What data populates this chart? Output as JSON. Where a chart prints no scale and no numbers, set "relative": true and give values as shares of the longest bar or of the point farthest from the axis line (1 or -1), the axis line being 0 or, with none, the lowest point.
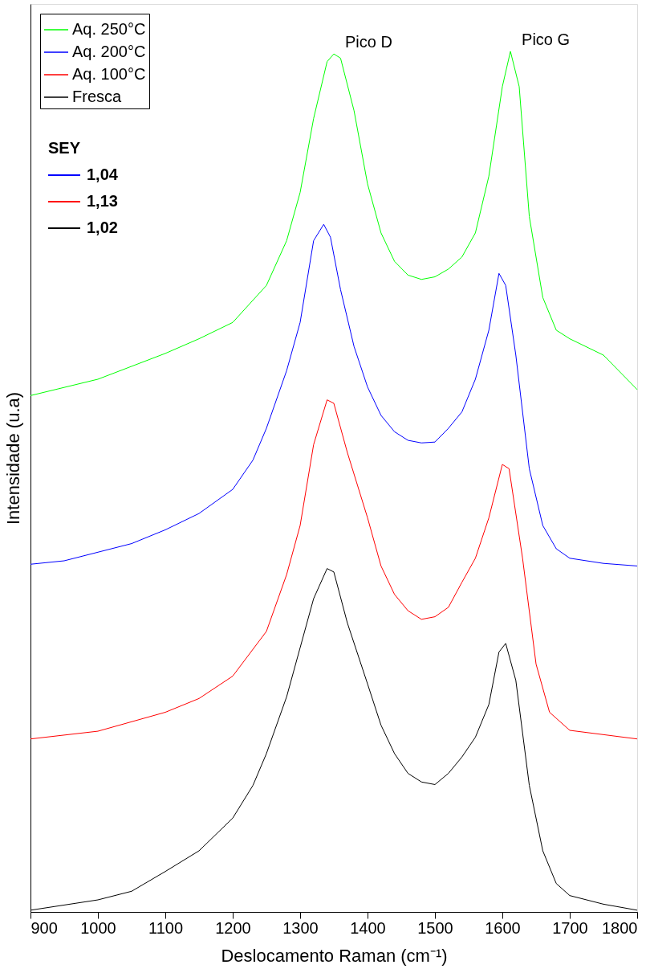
{
  "chart_data": {
    "type": "line",
    "relative": true,
    "xlabel": "Deslocamento Raman (cm⁻¹)",
    "ylabel": "Intensidade (u.a)",
    "xlim": [
      900,
      1800
    ],
    "xticks": [
      900,
      1000,
      1100,
      1200,
      1300,
      1400,
      1500,
      1600,
      1700,
      1800
    ],
    "tick_labels": "x",
    "grid": false,
    "legend": "top left",
    "line_style": "solid",
    "marker": "none",
    "annotations": [
      "SEY",
      "1,04",
      "1,13",
      "1,02",
      {
        "text": "Pico D",
        "x": 1350,
        "y": 0.997
      },
      {
        "text": "Pico G",
        "x": 1612,
        "y": 1.0
      }
    ],
    "series": [
      {
        "name": "Aq. 250°C",
        "color": "#00ff00",
        "x": [
          900,
          1000,
          1100,
          1150,
          1200,
          1250,
          1280,
          1300,
          1320,
          1340,
          1350,
          1360,
          1380,
          1400,
          1420,
          1440,
          1460,
          1480,
          1500,
          1520,
          1540,
          1560,
          1580,
          1600,
          1612,
          1625,
          1640,
          1660,
          1680,
          1700,
          1750,
          1800
        ],
        "values": [
          0.6,
          0.619,
          0.649,
          0.666,
          0.685,
          0.728,
          0.78,
          0.836,
          0.922,
          0.988,
          0.997,
          0.992,
          0.931,
          0.846,
          0.789,
          0.756,
          0.74,
          0.735,
          0.738,
          0.747,
          0.761,
          0.789,
          0.855,
          0.959,
          1.0,
          0.959,
          0.808,
          0.714,
          0.676,
          0.666,
          0.647,
          0.607
        ]
      },
      {
        "name": "Aq. 200°C",
        "color": "#0000ff",
        "x": [
          900,
          950,
          1000,
          1050,
          1100,
          1150,
          1200,
          1230,
          1250,
          1280,
          1300,
          1320,
          1335,
          1345,
          1360,
          1380,
          1400,
          1420,
          1440,
          1460,
          1480,
          1500,
          1520,
          1540,
          1560,
          1580,
          1595,
          1605,
          1620,
          1640,
          1660,
          1680,
          1700,
          1750,
          1800
        ],
        "values": [
          0.404,
          0.408,
          0.418,
          0.428,
          0.444,
          0.463,
          0.491,
          0.525,
          0.562,
          0.629,
          0.685,
          0.78,
          0.799,
          0.784,
          0.723,
          0.657,
          0.61,
          0.577,
          0.558,
          0.548,
          0.545,
          0.546,
          0.562,
          0.581,
          0.619,
          0.676,
          0.742,
          0.728,
          0.647,
          0.515,
          0.449,
          0.422,
          0.411,
          0.405,
          0.402
        ]
      },
      {
        "name": "Aq. 100°C",
        "color": "#ff0000",
        "x": [
          900,
          1000,
          1100,
          1150,
          1200,
          1250,
          1280,
          1300,
          1320,
          1340,
          1350,
          1370,
          1400,
          1420,
          1440,
          1460,
          1480,
          1500,
          1520,
          1540,
          1560,
          1580,
          1600,
          1610,
          1630,
          1650,
          1670,
          1700,
          1750,
          1800
        ],
        "values": [
          0.201,
          0.21,
          0.232,
          0.248,
          0.274,
          0.326,
          0.392,
          0.449,
          0.543,
          0.595,
          0.591,
          0.534,
          0.458,
          0.402,
          0.369,
          0.35,
          0.34,
          0.343,
          0.354,
          0.383,
          0.411,
          0.458,
          0.52,
          0.515,
          0.411,
          0.288,
          0.232,
          0.211,
          0.206,
          0.201
        ]
      },
      {
        "name": "Fresca",
        "color": "#000000",
        "x": [
          900,
          1000,
          1050,
          1100,
          1150,
          1200,
          1230,
          1250,
          1280,
          1300,
          1320,
          1340,
          1350,
          1370,
          1400,
          1420,
          1440,
          1460,
          1480,
          1500,
          1520,
          1540,
          1560,
          1580,
          1595,
          1605,
          1620,
          1640,
          1660,
          1680,
          1700,
          1750,
          1800
        ],
        "values": [
          0.002,
          0.014,
          0.024,
          0.047,
          0.071,
          0.109,
          0.147,
          0.184,
          0.25,
          0.307,
          0.364,
          0.399,
          0.395,
          0.336,
          0.265,
          0.217,
          0.184,
          0.161,
          0.151,
          0.148,
          0.161,
          0.18,
          0.203,
          0.241,
          0.302,
          0.312,
          0.269,
          0.147,
          0.071,
          0.033,
          0.019,
          0.009,
          0.002
        ]
      }
    ]
  }
}
